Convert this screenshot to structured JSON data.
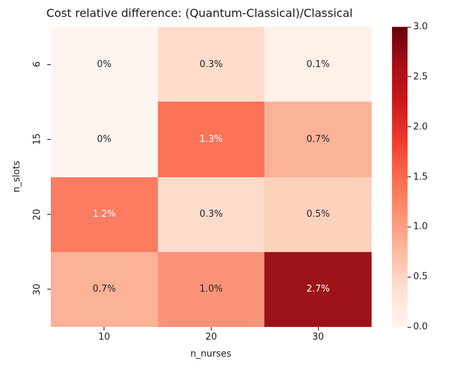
{
  "chart_data": {
    "type": "heatmap",
    "title": "Cost relative difference: (Quantum-Classical)/Classical",
    "xlabel": "n_nurses",
    "ylabel": "n_slots",
    "x_categories": [
      "10",
      "20",
      "30"
    ],
    "y_categories": [
      "6",
      "15",
      "20",
      "30"
    ],
    "values_percent": [
      [
        0.0,
        0.3,
        0.1
      ],
      [
        0.0,
        1.3,
        0.7
      ],
      [
        1.2,
        0.3,
        0.5
      ],
      [
        0.7,
        1.0,
        2.7
      ]
    ],
    "cells": [
      [
        {
          "label": "0%",
          "color": "#fff5f0",
          "text_color": "#262626"
        },
        {
          "label": "0.3%",
          "color": "#fddccc",
          "text_color": "#262626"
        },
        {
          "label": "0.1%",
          "color": "#fff0e9",
          "text_color": "#262626"
        }
      ],
      [
        {
          "label": "0%",
          "color": "#fff5f0",
          "text_color": "#262626"
        },
        {
          "label": "1.3%",
          "color": "#fb7257",
          "text_color": "#ffffff"
        },
        {
          "label": "0.7%",
          "color": "#fbb296",
          "text_color": "#262626"
        }
      ],
      [
        {
          "label": "1.2%",
          "color": "#fb7c61",
          "text_color": "#ffffff"
        },
        {
          "label": "0.3%",
          "color": "#fddccc",
          "text_color": "#262626"
        },
        {
          "label": "0.5%",
          "color": "#fcd2bd",
          "text_color": "#262626"
        }
      ],
      [
        {
          "label": "0.7%",
          "color": "#fbb296",
          "text_color": "#262626"
        },
        {
          "label": "1.0%",
          "color": "#fb9378",
          "text_color": "#262626"
        },
        {
          "label": "2.7%",
          "color": "#9c1218",
          "text_color": "#ffffff"
        }
      ]
    ],
    "colorbar": {
      "vmin": 0.0,
      "vmax": 3.0,
      "tick_labels_top_to_bottom": [
        "3.0",
        "2.5",
        "2.0",
        "1.5",
        "1.0",
        "0.5",
        "0.0"
      ],
      "gradient_bottom_to_top": [
        "#fff5f0",
        "#fee0d2",
        "#fcbba1",
        "#fc9272",
        "#fb6a4a",
        "#ef3b2c",
        "#cb181d",
        "#a50f15",
        "#67000d"
      ]
    },
    "legend": "colorbar-right",
    "grid": false
  }
}
